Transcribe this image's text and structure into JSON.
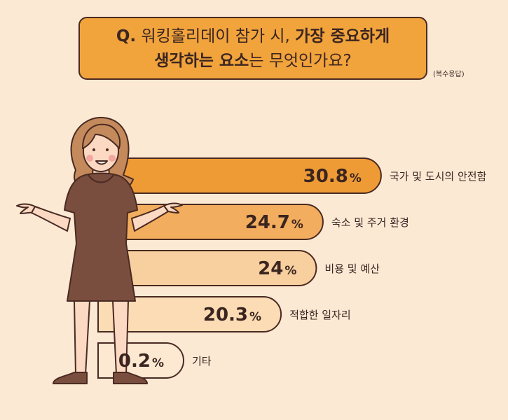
{
  "question": {
    "prefix": "Q.",
    "line1_plain": "워킹홀리데이 참가 시,",
    "line1_bold": "가장 중요하게",
    "line2_bold": "생각하는 요소",
    "line2_plain": "는 무엇인가요?"
  },
  "note": "(복수응답)",
  "colors": {
    "background": "#fbe9d4",
    "question_box": "#f1a33c",
    "outline": "#4a2a22",
    "text": "#3b2520"
  },
  "chart_data": {
    "type": "bar",
    "orientation": "horizontal",
    "unit": "%",
    "categories": [
      "국가 및 도시의 안전함",
      "숙소 및 주거 환경",
      "비용 및 예산",
      "적합한 일자리",
      "기타"
    ],
    "values": [
      30.8,
      24.7,
      24,
      20.3,
      0.2
    ],
    "value_labels": [
      "30.8",
      "24.7",
      "24",
      "20.3",
      "0.2"
    ],
    "bar_colors": [
      "#ef9b35",
      "#f2ad5e",
      "#f8cf9f",
      "#fbdcb4",
      "#fde9d2"
    ]
  }
}
